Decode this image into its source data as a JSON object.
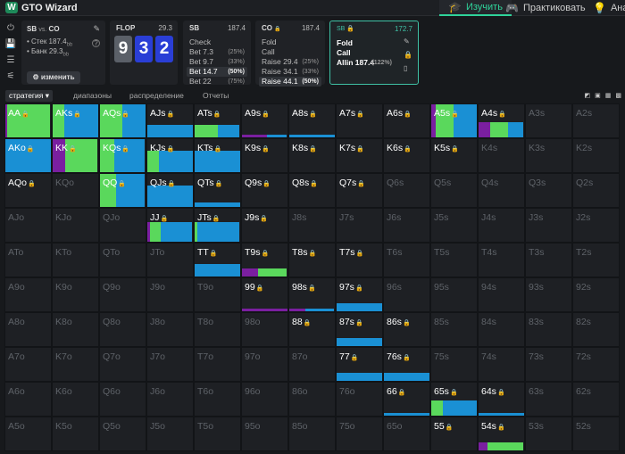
{
  "app": {
    "logo_letter": "W",
    "brand": "GTO Wizard",
    "nav": [
      {
        "label": "Изучить",
        "icon": "graduation-cap-icon",
        "active": true
      },
      {
        "label": "Практиковать",
        "icon": "gamepad-icon",
        "active": false
      },
      {
        "label": "Анал",
        "icon": "lightbulb-icon",
        "active": false
      }
    ]
  },
  "sidebar_icons": [
    "power-icon",
    "save-icon",
    "sliders-icon",
    "tree-icon"
  ],
  "info": {
    "title_a": "SB",
    "title_vs": "vs.",
    "title_b": "CO",
    "stack_label": "• Стек 187.4",
    "stack_unit": "bb",
    "pot_label": "• Банк 29.3",
    "pot_unit": "bb",
    "change_button": "⚙ изменить"
  },
  "flop": {
    "name": "FLOP",
    "pot": "29.3",
    "cards": [
      "9",
      "3",
      "2"
    ]
  },
  "sb_node": {
    "name": "SB",
    "stack": "187.4",
    "actions": [
      {
        "label": "Check",
        "pct": "",
        "selected": false
      },
      {
        "label": "Bet 7.3",
        "pct": "(25%)",
        "selected": false
      },
      {
        "label": "Bet 9.7",
        "pct": "(33%)",
        "selected": false
      },
      {
        "label": "Bet 14.7",
        "pct": "(50%)",
        "selected": true
      },
      {
        "label": "Bet 22",
        "pct": "(75%)",
        "selected": false
      }
    ]
  },
  "co_node": {
    "name": "CO",
    "stack": "187.4",
    "actions": [
      {
        "label": "Fold",
        "pct": "",
        "selected": false
      },
      {
        "label": "Call",
        "pct": "",
        "selected": false
      },
      {
        "label": "Raise 29.4",
        "pct": "(25%)",
        "selected": false
      },
      {
        "label": "Raise 34.1",
        "pct": "(33%)",
        "selected": false
      },
      {
        "label": "Raise 44.1",
        "pct": "(50%)",
        "selected": true
      }
    ]
  },
  "sb_active": {
    "name": "SB",
    "stack": "172.7",
    "actions": [
      {
        "label": "Fold",
        "pct": ""
      },
      {
        "label": "Call",
        "pct": ""
      },
      {
        "label": "Allin 187.4",
        "pct": "(122%)"
      }
    ]
  },
  "tabs": [
    "стратегия ▾",
    "диапазоны",
    "распределение",
    "Отчеты"
  ],
  "colors": {
    "fold": "#1a90d4",
    "call": "#5ad85c",
    "allin": "#7a1fa0",
    "accent": "#2fd39a"
  },
  "grid": {
    "ranks": [
      "A",
      "K",
      "Q",
      "J",
      "T",
      "9",
      "8",
      "7",
      "6",
      "5",
      "4",
      "3",
      "2"
    ],
    "rows": [
      [
        "AA",
        "AKs",
        "AQs",
        "AJs",
        "ATs",
        "A9s",
        "A8s",
        "A7s",
        "A6s",
        "A5s",
        "A4s",
        "A3s",
        "A2s"
      ],
      [
        "AKo",
        "KK",
        "KQs",
        "KJs",
        "KTs",
        "K9s",
        "K8s",
        "K7s",
        "K6s",
        "K5s",
        "K4s",
        "K3s",
        "K2s"
      ],
      [
        "AQo",
        "KQo",
        "QQ",
        "QJs",
        "QTs",
        "Q9s",
        "Q8s",
        "Q7s",
        "Q6s",
        "Q5s",
        "Q4s",
        "Q3s",
        "Q2s"
      ],
      [
        "AJo",
        "KJo",
        "QJo",
        "JJ",
        "JTs",
        "J9s",
        "J8s",
        "J7s",
        "J6s",
        "J5s",
        "J4s",
        "J3s",
        "J2s"
      ],
      [
        "ATo",
        "KTo",
        "QTo",
        "JTo",
        "TT",
        "T9s",
        "T8s",
        "T7s",
        "T6s",
        "T5s",
        "T4s",
        "T3s",
        "T2s"
      ],
      [
        "A9o",
        "K9o",
        "Q9o",
        "J9o",
        "T9o",
        "99",
        "98s",
        "97s",
        "96s",
        "95s",
        "94s",
        "93s",
        "92s"
      ],
      [
        "A8o",
        "K8o",
        "Q8o",
        "J8o",
        "T8o",
        "98o",
        "88",
        "87s",
        "86s",
        "85s",
        "84s",
        "83s",
        "82s"
      ],
      [
        "A7o",
        "K7o",
        "Q7o",
        "J7o",
        "T7o",
        "97o",
        "87o",
        "77",
        "76s",
        "75s",
        "74s",
        "73s",
        "72s"
      ],
      [
        "A6o",
        "K6o",
        "Q6o",
        "J6o",
        "T6o",
        "96o",
        "86o",
        "76o",
        "66",
        "65s",
        "64s",
        "63s",
        "62s"
      ],
      [
        "A5o",
        "K5o",
        "Q5o",
        "J5o",
        "T5o",
        "95o",
        "85o",
        "75o",
        "65o",
        "55",
        "54s",
        "53s",
        "52s"
      ]
    ],
    "active_hands": [
      "AA",
      "AKs",
      "AQs",
      "AJs",
      "ATs",
      "A9s",
      "A8s",
      "A7s",
      "A6s",
      "A5s",
      "A4s",
      "AKo",
      "KK",
      "KQs",
      "KJs",
      "KTs",
      "K9s",
      "K8s",
      "K7s",
      "K6s",
      "K5s",
      "AQo",
      "QQ",
      "QJs",
      "QTs",
      "Q9s",
      "Q8s",
      "Q7s",
      "JJ",
      "JTs",
      "J9s",
      "TT",
      "T9s",
      "T8s",
      "T7s",
      "99",
      "98s",
      "97s",
      "88",
      "87s",
      "86s",
      "77",
      "76s",
      "66",
      "65s",
      "64s",
      "55",
      "54s"
    ],
    "strategies": {
      "AA": {
        "mode": "big",
        "segs": [
          [
            "allin",
            0.04
          ],
          [
            "call",
            0.96
          ]
        ]
      },
      "AKs": {
        "mode": "big",
        "segs": [
          [
            "call",
            0.25
          ],
          [
            "fold",
            0.75
          ]
        ]
      },
      "AQs": {
        "mode": "big",
        "segs": [
          [
            "call",
            0.5
          ],
          [
            "fold",
            0.5
          ]
        ]
      },
      "AJs": {
        "mode": "bar",
        "h": 0.36,
        "segs": [
          [
            "fold",
            1.0
          ]
        ]
      },
      "ATs": {
        "mode": "bar",
        "h": 0.36,
        "segs": [
          [
            "call",
            0.52
          ],
          [
            "fold",
            0.48
          ]
        ]
      },
      "A9s": {
        "mode": "line",
        "segs": [
          [
            "allin",
            0.55
          ],
          [
            "fold",
            0.45
          ]
        ]
      },
      "A8s": {
        "mode": "line",
        "segs": [
          [
            "fold",
            1.0
          ]
        ]
      },
      "A5s": {
        "mode": "big",
        "segs": [
          [
            "allin",
            0.1
          ],
          [
            "call",
            0.4
          ],
          [
            "fold",
            0.5
          ]
        ]
      },
      "A4s": {
        "mode": "bar",
        "h": 0.45,
        "segs": [
          [
            "allin",
            0.25
          ],
          [
            "call",
            0.4
          ],
          [
            "fold",
            0.35
          ]
        ]
      },
      "AKo": {
        "mode": "big",
        "segs": [
          [
            "fold",
            1.0
          ]
        ]
      },
      "KK": {
        "mode": "big",
        "segs": [
          [
            "allin",
            0.28
          ],
          [
            "call",
            0.72
          ]
        ]
      },
      "KQs": {
        "mode": "big",
        "segs": [
          [
            "call",
            0.32
          ],
          [
            "fold",
            0.68
          ]
        ]
      },
      "KJs": {
        "mode": "bar",
        "h": 0.65,
        "segs": [
          [
            "call",
            0.25
          ],
          [
            "fold",
            0.75
          ]
        ]
      },
      "KTs": {
        "mode": "bar",
        "h": 0.65,
        "segs": [
          [
            "fold",
            1.0
          ]
        ]
      },
      "QQ": {
        "mode": "big",
        "segs": [
          [
            "call",
            0.35
          ],
          [
            "fold",
            0.65
          ]
        ]
      },
      "QJs": {
        "mode": "bar",
        "h": 0.65,
        "segs": [
          [
            "fold",
            1.0
          ]
        ]
      },
      "QTs": {
        "mode": "bar",
        "h": 0.12,
        "segs": [
          [
            "fold",
            1.0
          ]
        ]
      },
      "JJ": {
        "mode": "bar",
        "h": 0.58,
        "segs": [
          [
            "allin",
            0.06
          ],
          [
            "call",
            0.24
          ],
          [
            "fold",
            0.7
          ]
        ]
      },
      "JTs": {
        "mode": "bar",
        "h": 0.58,
        "segs": [
          [
            "call",
            0.05
          ],
          [
            "fold",
            0.95
          ]
        ]
      },
      "TT": {
        "mode": "bar",
        "h": 0.38,
        "segs": [
          [
            "fold",
            1.0
          ]
        ]
      },
      "T9s": {
        "mode": "bar",
        "h": 0.24,
        "segs": [
          [
            "allin",
            0.35
          ],
          [
            "call",
            0.65
          ]
        ]
      },
      "99": {
        "mode": "line",
        "segs": [
          [
            "allin",
            1.0
          ]
        ]
      },
      "98s": {
        "mode": "line",
        "segs": [
          [
            "allin",
            0.35
          ],
          [
            "fold",
            0.65
          ]
        ]
      },
      "97s": {
        "mode": "bar",
        "h": 0.24,
        "segs": [
          [
            "fold",
            1.0
          ]
        ]
      },
      "87s": {
        "mode": "bar",
        "h": 0.24,
        "segs": [
          [
            "fold",
            1.0
          ]
        ]
      },
      "77": {
        "mode": "bar",
        "h": 0.24,
        "segs": [
          [
            "fold",
            1.0
          ]
        ]
      },
      "76s": {
        "mode": "bar",
        "h": 0.24,
        "segs": [
          [
            "fold",
            1.0
          ]
        ]
      },
      "66": {
        "mode": "line",
        "segs": [
          [
            "fold",
            1.0
          ]
        ]
      },
      "65s": {
        "mode": "bar",
        "h": 0.45,
        "segs": [
          [
            "call",
            0.25
          ],
          [
            "fold",
            0.75
          ]
        ]
      },
      "64s": {
        "mode": "line",
        "segs": [
          [
            "fold",
            1.0
          ]
        ]
      },
      "54s": {
        "mode": "bar",
        "h": 0.24,
        "segs": [
          [
            "allin",
            0.2
          ],
          [
            "call",
            0.8
          ]
        ]
      }
    }
  }
}
